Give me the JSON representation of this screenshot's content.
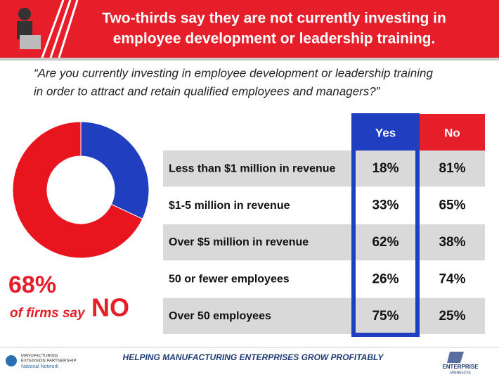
{
  "header": {
    "title": [
      "Two-thirds say they are not currently investing in",
      "employee development or leadership training."
    ]
  },
  "question": [
    "“Are you currently investing in employee development or leadership training",
    "in order to attract and retain qualified employees and managers?”"
  ],
  "chart_data": {
    "type": "pie",
    "donut": true,
    "values": [
      32,
      68
    ],
    "colors": [
      "#1f3fc0",
      "#e8141e"
    ],
    "value_labels": [
      null,
      "68%"
    ]
  },
  "callout": {
    "text": "of firms say",
    "emphasis": "NO"
  },
  "table": {
    "columns": [
      "Yes",
      "No"
    ],
    "rows": [
      [
        "Less than $1 million in revenue",
        "18%",
        "81%"
      ],
      [
        "$1-5 million in revenue",
        "33%",
        "65%"
      ],
      [
        "Over $5 million in revenue",
        "62%",
        "38%"
      ],
      [
        "50 or fewer employees",
        "26%",
        "74%"
      ],
      [
        "Over 50 employees",
        "75%",
        "25%"
      ]
    ]
  },
  "footer": {
    "tagline": "HELPING MANUFACTURING ENTERPRISES GROW PROFITABLY",
    "left_logo": [
      "MANUFACTURING",
      "EXTENSION PARTNERSHIP",
      "National Network"
    ],
    "right_logo": [
      "ENTERPRISE",
      "MINNESOTA"
    ]
  }
}
